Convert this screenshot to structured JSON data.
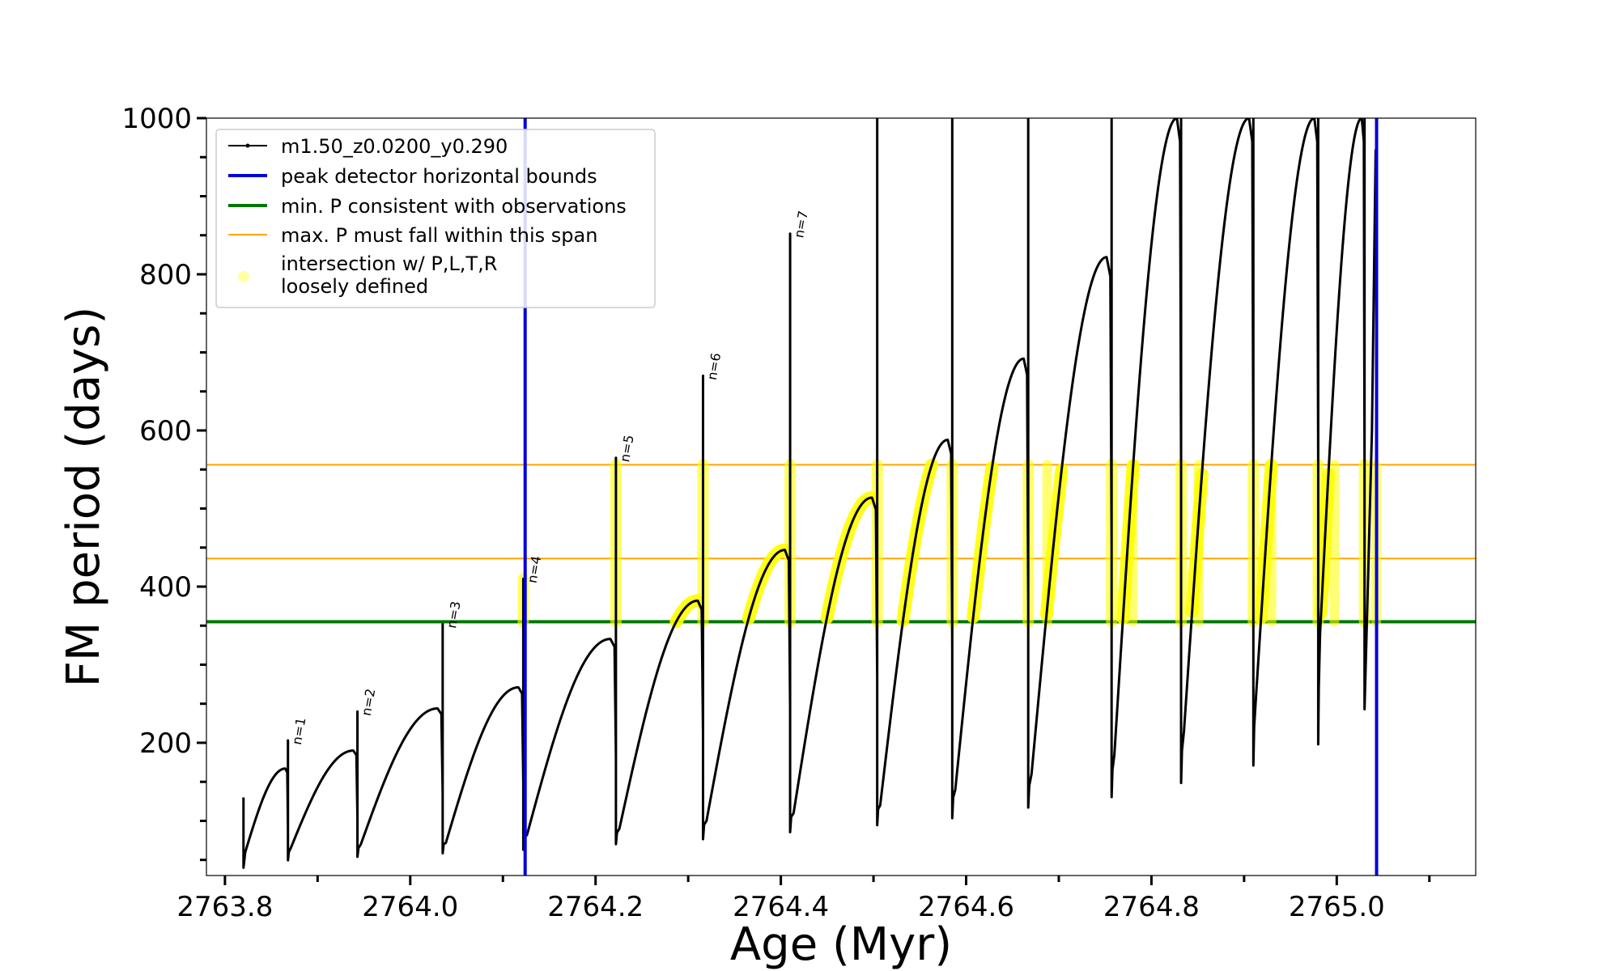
{
  "chart_data": {
    "type": "line",
    "title": "",
    "xlabel": "Age (Myr)",
    "ylabel": "FM period (days)",
    "xlim": [
      2763.78,
      2765.15
    ],
    "ylim": [
      30,
      1000
    ],
    "grid": false,
    "legend_position": "top-left",
    "x_ticks": [
      2763.8,
      2764.0,
      2764.2,
      2764.4,
      2764.6,
      2764.8,
      2765.0
    ],
    "x_tick_labels": [
      "2763.8",
      "2764.0",
      "2764.2",
      "2764.4",
      "2764.6",
      "2764.8",
      "2765.0"
    ],
    "y_ticks": [
      200,
      400,
      600,
      800,
      1000
    ],
    "y_tick_labels": [
      "200",
      "400",
      "600",
      "800",
      "1000"
    ],
    "colors": {
      "track": "#000000",
      "bounds": "#0000dd",
      "min_p": "#007700",
      "max_p_span": "#ffa500",
      "intersection": "#ffff00"
    },
    "legend": [
      {
        "label": "m1.50_z0.0200_y0.290",
        "kind": "line-marker"
      },
      {
        "label": "peak detector horizontal bounds",
        "kind": "line"
      },
      {
        "label": "min. P consistent with observations",
        "kind": "line"
      },
      {
        "label": "max. P must fall within this span",
        "kind": "thin-line"
      },
      {
        "label": "intersection w/ P,L,T,R",
        "label2": "loosely defined",
        "kind": "dot"
      }
    ],
    "peak_detector_bounds": [
      2764.124,
      2765.043
    ],
    "min_period": 355,
    "max_period_span": [
      436,
      556
    ],
    "pulses": [
      {
        "start": 2763.82,
        "end": 2763.868,
        "base": 60,
        "top": 167,
        "spike": 203,
        "min_after": 55
      },
      {
        "start": 2763.868,
        "end": 2763.943,
        "base": 65,
        "top": 190,
        "spike": 240,
        "min_after": 60
      },
      {
        "start": 2763.943,
        "end": 2764.035,
        "base": 70,
        "top": 244,
        "spike": 352,
        "min_after": 65
      },
      {
        "start": 2764.035,
        "end": 2764.122,
        "base": 72,
        "top": 271,
        "spike": 410,
        "min_after": 70
      },
      {
        "start": 2764.122,
        "end": 2764.222,
        "base": 82,
        "top": 333,
        "spike": 565,
        "min_after": 78
      },
      {
        "start": 2764.222,
        "end": 2764.316,
        "base": 90,
        "top": 382,
        "spike": 670,
        "min_after": 85
      },
      {
        "start": 2764.316,
        "end": 2764.41,
        "base": 100,
        "top": 447,
        "spike": 852,
        "min_after": 95
      },
      {
        "start": 2764.41,
        "end": 2764.504,
        "base": 110,
        "top": 514,
        "spike": 1000,
        "min_after": 105
      },
      {
        "start": 2764.504,
        "end": 2764.585,
        "base": 120,
        "top": 588,
        "spike": 1000,
        "min_after": 115
      },
      {
        "start": 2764.585,
        "end": 2764.667,
        "base": 140,
        "top": 692,
        "spike": 1000,
        "min_after": 130
      },
      {
        "start": 2764.667,
        "end": 2764.757,
        "base": 160,
        "top": 822,
        "spike": 1000,
        "min_after": 145
      },
      {
        "start": 2764.757,
        "end": 2764.832,
        "base": 185,
        "top": 1000,
        "spike": 1000,
        "min_after": 165
      },
      {
        "start": 2764.832,
        "end": 2764.91,
        "base": 215,
        "top": 1000,
        "spike": 1000,
        "min_after": 190
      },
      {
        "start": 2764.91,
        "end": 2764.98,
        "base": 258,
        "top": 1000,
        "spike": 1000,
        "min_after": 220
      },
      {
        "start": 2764.98,
        "end": 2765.03,
        "base": 340,
        "top": 1000,
        "spike": 1000,
        "min_after": 270
      }
    ],
    "annotations": [
      {
        "text": "n=1",
        "x": 2763.868,
        "y": 203
      },
      {
        "text": "n=2",
        "x": 2763.943,
        "y": 240
      },
      {
        "text": "n=3",
        "x": 2764.035,
        "y": 352
      },
      {
        "text": "n=4",
        "x": 2764.122,
        "y": 410
      },
      {
        "text": "n=5",
        "x": 2764.222,
        "y": 565
      },
      {
        "text": "n=6",
        "x": 2764.316,
        "y": 670
      },
      {
        "text": "n=7",
        "x": 2764.41,
        "y": 852
      }
    ]
  }
}
